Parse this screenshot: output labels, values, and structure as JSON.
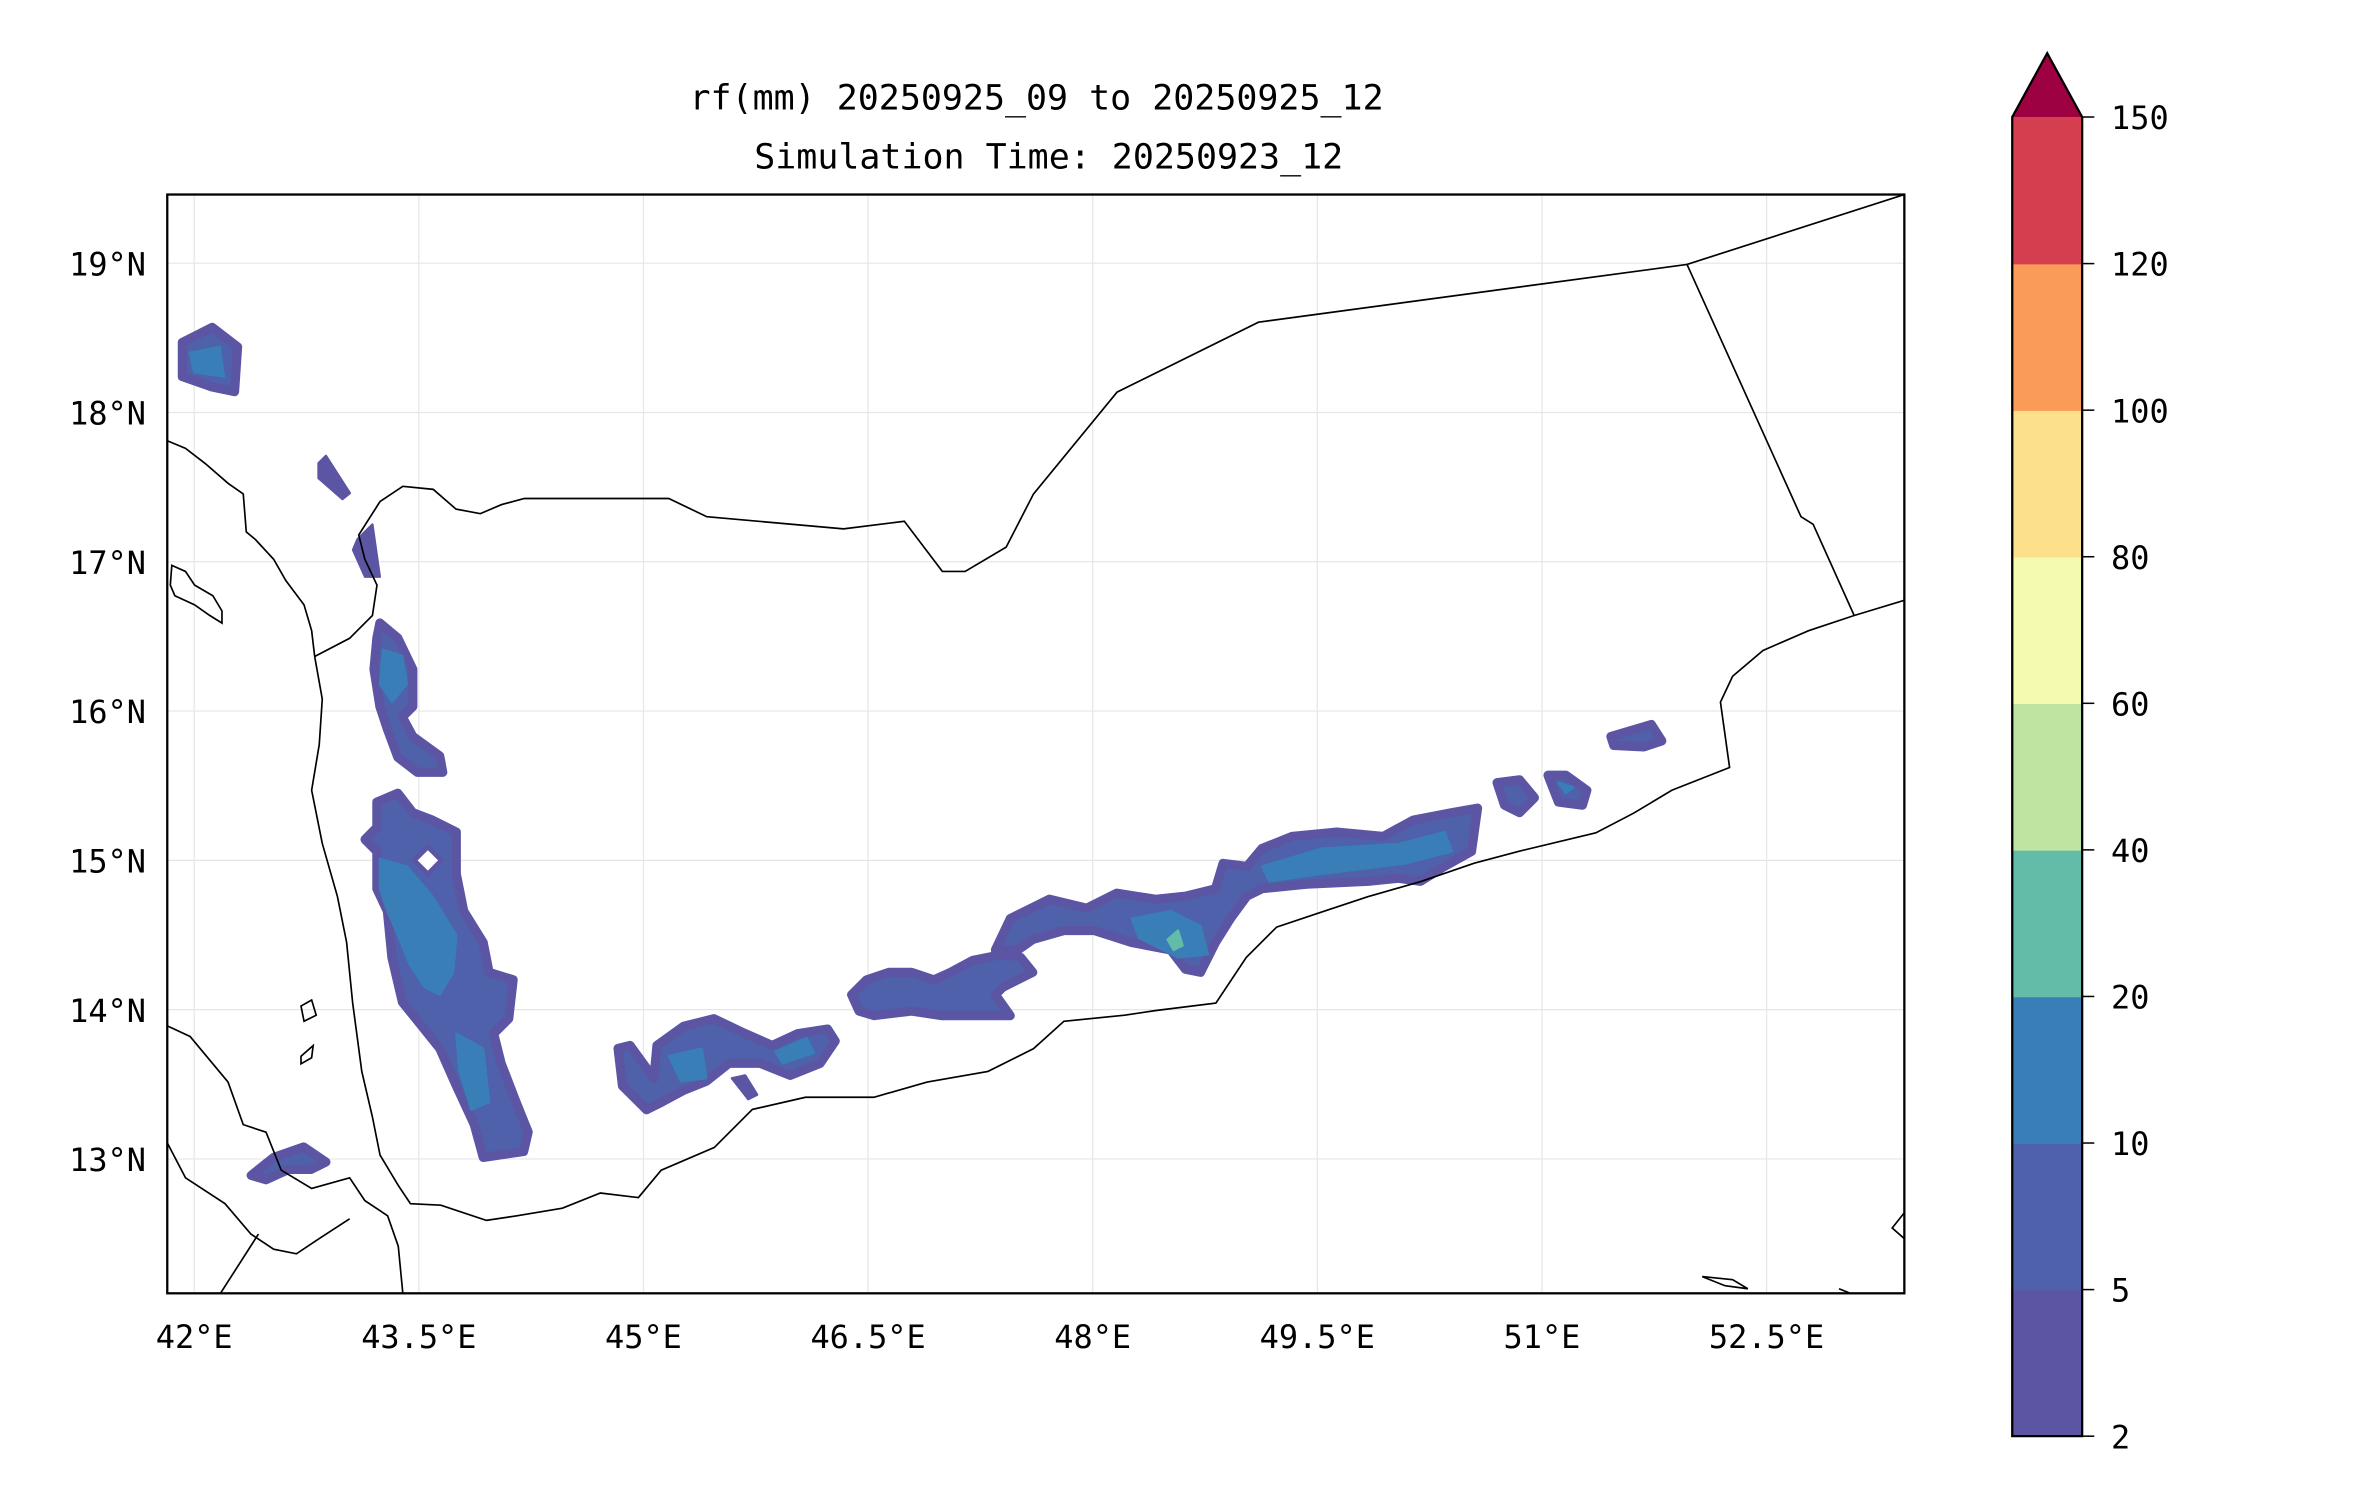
{
  "chart_data": {
    "type": "heatmap",
    "subtype": "filled-contour-map",
    "title": [
      "rf(mm) 20250925_09 to 20250925_12",
      "Simulation Time: 20250923_12"
    ],
    "variable": "rf(mm)",
    "xlim": [
      41.82,
      53.42
    ],
    "ylim": [
      12.1,
      19.46
    ],
    "grid": true,
    "x_ticks": [
      {
        "value": 42,
        "label": "42°E"
      },
      {
        "value": 43.5,
        "label": "43.5°E"
      },
      {
        "value": 45,
        "label": "45°E"
      },
      {
        "value": 46.5,
        "label": "46.5°E"
      },
      {
        "value": 48,
        "label": "48°E"
      },
      {
        "value": 49.5,
        "label": "49.5°E"
      },
      {
        "value": 51,
        "label": "51°E"
      },
      {
        "value": 52.5,
        "label": "52.5°E"
      }
    ],
    "y_ticks": [
      {
        "value": 13,
        "label": "13°N"
      },
      {
        "value": 14,
        "label": "14°N"
      },
      {
        "value": 15,
        "label": "15°N"
      },
      {
        "value": 16,
        "label": "16°N"
      },
      {
        "value": 17,
        "label": "17°N"
      },
      {
        "value": 18,
        "label": "18°N"
      },
      {
        "value": 19,
        "label": "19°N"
      }
    ],
    "colorbar": {
      "placement": "right",
      "extend": "max",
      "levels": [
        2,
        5,
        10,
        20,
        40,
        60,
        80,
        100,
        120,
        150
      ],
      "tick_labels": [
        "2",
        "5",
        "10",
        "20",
        "40",
        "60",
        "80",
        "100",
        "120",
        "150"
      ],
      "colors": [
        "#5c55a3",
        "#4e61aa",
        "#3a7eb8",
        "#62bca8",
        "#bde4a0",
        "#f4fbb0",
        "#fde08b",
        "#fa9c58",
        "#d53e4f"
      ],
      "over_color": "#9e0142"
    },
    "rain_areas": [
      {
        "level": 1,
        "lonlat": [
          [
            41.92,
            18.47
          ],
          [
            42.12,
            18.57
          ],
          [
            42.29,
            18.44
          ],
          [
            42.27,
            18.14
          ],
          [
            42.12,
            18.17
          ],
          [
            41.92,
            18.24
          ]
        ]
      },
      {
        "level": 2,
        "lonlat": [
          [
            41.97,
            18.4
          ],
          [
            42.17,
            18.44
          ],
          [
            42.2,
            18.24
          ],
          [
            42.0,
            18.27
          ]
        ]
      },
      {
        "level": 0,
        "lonlat": [
          [
            42.83,
            17.66
          ],
          [
            42.88,
            17.71
          ],
          [
            43.04,
            17.46
          ],
          [
            42.99,
            17.42
          ],
          [
            42.83,
            17.56
          ]
        ]
      },
      {
        "level": 0,
        "lonlat": [
          [
            43.09,
            17.15
          ],
          [
            43.19,
            17.25
          ],
          [
            43.24,
            16.9
          ],
          [
            43.14,
            16.9
          ],
          [
            43.06,
            17.08
          ]
        ]
      },
      {
        "level": 1,
        "lonlat": [
          [
            43.24,
            16.59
          ],
          [
            43.36,
            16.49
          ],
          [
            43.46,
            16.28
          ],
          [
            43.46,
            16.03
          ],
          [
            43.39,
            15.96
          ],
          [
            43.46,
            15.83
          ],
          [
            43.64,
            15.7
          ],
          [
            43.66,
            15.59
          ],
          [
            43.49,
            15.59
          ],
          [
            43.36,
            15.69
          ],
          [
            43.29,
            15.88
          ],
          [
            43.24,
            16.03
          ],
          [
            43.2,
            16.28
          ],
          [
            43.22,
            16.49
          ]
        ]
      },
      {
        "level": 2,
        "lonlat": [
          [
            43.26,
            16.41
          ],
          [
            43.39,
            16.37
          ],
          [
            43.42,
            16.18
          ],
          [
            43.32,
            16.06
          ],
          [
            43.24,
            16.18
          ]
        ]
      },
      {
        "level": 1,
        "lonlat": [
          [
            43.22,
            15.39
          ],
          [
            43.36,
            15.45
          ],
          [
            43.46,
            15.32
          ],
          [
            43.59,
            15.27
          ],
          [
            43.75,
            15.19
          ],
          [
            43.75,
            14.91
          ],
          [
            43.8,
            14.66
          ],
          [
            43.93,
            14.45
          ],
          [
            43.97,
            14.25
          ],
          [
            44.13,
            14.2
          ],
          [
            44.1,
            13.94
          ],
          [
            44.0,
            13.84
          ],
          [
            44.05,
            13.64
          ],
          [
            44.15,
            13.38
          ],
          [
            44.23,
            13.18
          ],
          [
            44.2,
            13.05
          ],
          [
            43.93,
            13.01
          ],
          [
            43.87,
            13.23
          ],
          [
            43.75,
            13.49
          ],
          [
            43.64,
            13.74
          ],
          [
            43.52,
            13.89
          ],
          [
            43.39,
            14.05
          ],
          [
            43.32,
            14.35
          ],
          [
            43.29,
            14.66
          ],
          [
            43.22,
            14.81
          ],
          [
            43.22,
            15.06
          ],
          [
            43.14,
            15.14
          ],
          [
            43.22,
            15.22
          ]
        ]
      },
      {
        "level": 2,
        "lonlat": [
          [
            43.24,
            15.01
          ],
          [
            43.42,
            14.96
          ],
          [
            43.59,
            14.76
          ],
          [
            43.75,
            14.5
          ],
          [
            43.73,
            14.25
          ],
          [
            43.64,
            14.1
          ],
          [
            43.54,
            14.15
          ],
          [
            43.44,
            14.3
          ],
          [
            43.36,
            14.5
          ],
          [
            43.29,
            14.66
          ],
          [
            43.24,
            14.81
          ]
        ]
      },
      {
        "level": 2,
        "lonlat": [
          [
            43.75,
            13.84
          ],
          [
            43.93,
            13.74
          ],
          [
            43.97,
            13.38
          ],
          [
            43.85,
            13.33
          ],
          [
            43.77,
            13.59
          ]
        ]
      },
      {
        "level": -1,
        "lonlat": [
          [
            43.47,
            15.0
          ],
          [
            43.56,
            15.09
          ],
          [
            43.65,
            15.0
          ],
          [
            43.56,
            14.91
          ]
        ]
      },
      {
        "level": 1,
        "lonlat": [
          [
            44.83,
            13.74
          ],
          [
            44.91,
            13.76
          ],
          [
            45.07,
            13.54
          ],
          [
            45.09,
            13.76
          ],
          [
            45.27,
            13.89
          ],
          [
            45.47,
            13.94
          ],
          [
            45.68,
            13.84
          ],
          [
            45.86,
            13.76
          ],
          [
            46.03,
            13.84
          ],
          [
            46.23,
            13.87
          ],
          [
            46.28,
            13.79
          ],
          [
            46.18,
            13.64
          ],
          [
            45.98,
            13.56
          ],
          [
            45.78,
            13.64
          ],
          [
            45.57,
            13.64
          ],
          [
            45.42,
            13.52
          ],
          [
            45.27,
            13.46
          ],
          [
            45.12,
            13.38
          ],
          [
            45.02,
            13.33
          ],
          [
            44.86,
            13.49
          ]
        ]
      },
      {
        "level": 2,
        "lonlat": [
          [
            45.17,
            13.69
          ],
          [
            45.39,
            13.74
          ],
          [
            45.42,
            13.54
          ],
          [
            45.25,
            13.52
          ]
        ]
      },
      {
        "level": 2,
        "lonlat": [
          [
            45.88,
            13.72
          ],
          [
            46.09,
            13.81
          ],
          [
            46.14,
            13.71
          ],
          [
            45.93,
            13.64
          ]
        ]
      },
      {
        "level": 0,
        "lonlat": [
          [
            45.59,
            13.54
          ],
          [
            45.68,
            13.56
          ],
          [
            45.76,
            13.43
          ],
          [
            45.7,
            13.4
          ]
        ]
      },
      {
        "level": 1,
        "lonlat": [
          [
            46.39,
            14.1
          ],
          [
            46.49,
            14.2
          ],
          [
            46.64,
            14.25
          ],
          [
            46.79,
            14.25
          ],
          [
            46.94,
            14.2
          ],
          [
            47.05,
            14.25
          ],
          [
            47.2,
            14.33
          ],
          [
            47.4,
            14.37
          ],
          [
            47.52,
            14.35
          ],
          [
            47.6,
            14.25
          ],
          [
            47.4,
            14.15
          ],
          [
            47.35,
            14.1
          ],
          [
            47.45,
            13.96
          ],
          [
            46.99,
            13.96
          ],
          [
            46.79,
            13.99
          ],
          [
            46.54,
            13.96
          ],
          [
            46.44,
            13.99
          ]
        ]
      },
      {
        "level": 1,
        "lonlat": [
          [
            47.35,
            14.4
          ],
          [
            47.45,
            14.61
          ],
          [
            47.71,
            14.74
          ],
          [
            47.96,
            14.68
          ],
          [
            48.16,
            14.78
          ],
          [
            48.42,
            14.74
          ],
          [
            48.62,
            14.76
          ],
          [
            48.82,
            14.81
          ],
          [
            48.87,
            14.98
          ],
          [
            49.03,
            14.96
          ],
          [
            49.13,
            15.08
          ],
          [
            49.33,
            15.16
          ],
          [
            49.63,
            15.19
          ],
          [
            49.94,
            15.16
          ],
          [
            50.14,
            15.27
          ],
          [
            50.4,
            15.32
          ],
          [
            50.57,
            15.35
          ],
          [
            50.53,
            15.06
          ],
          [
            50.35,
            14.96
          ],
          [
            50.19,
            14.86
          ],
          [
            50.04,
            14.88
          ],
          [
            49.84,
            14.86
          ],
          [
            49.43,
            14.84
          ],
          [
            49.13,
            14.81
          ],
          [
            49.03,
            14.76
          ],
          [
            48.92,
            14.61
          ],
          [
            48.82,
            14.45
          ],
          [
            48.72,
            14.25
          ],
          [
            48.62,
            14.27
          ],
          [
            48.52,
            14.4
          ],
          [
            48.26,
            14.45
          ],
          [
            48.01,
            14.53
          ],
          [
            47.81,
            14.53
          ],
          [
            47.6,
            14.47
          ],
          [
            47.5,
            14.4
          ]
        ]
      },
      {
        "level": 2,
        "lonlat": [
          [
            48.26,
            14.61
          ],
          [
            48.52,
            14.66
          ],
          [
            48.72,
            14.56
          ],
          [
            48.77,
            14.37
          ],
          [
            48.57,
            14.35
          ],
          [
            48.31,
            14.48
          ]
        ]
      },
      {
        "level": 2,
        "lonlat": [
          [
            49.13,
            14.96
          ],
          [
            49.53,
            15.08
          ],
          [
            50.04,
            15.11
          ],
          [
            50.35,
            15.19
          ],
          [
            50.4,
            15.06
          ],
          [
            50.09,
            14.98
          ],
          [
            49.53,
            14.91
          ],
          [
            49.18,
            14.86
          ]
        ]
      },
      {
        "level": 3,
        "lonlat": [
          [
            48.5,
            14.47
          ],
          [
            48.57,
            14.53
          ],
          [
            48.6,
            14.43
          ],
          [
            48.54,
            14.4
          ]
        ]
      },
      {
        "level": 1,
        "lonlat": [
          [
            50.7,
            15.52
          ],
          [
            50.85,
            15.54
          ],
          [
            50.95,
            15.42
          ],
          [
            50.85,
            15.32
          ],
          [
            50.75,
            15.37
          ]
        ]
      },
      {
        "level": 1,
        "lonlat": [
          [
            51.04,
            15.57
          ],
          [
            51.16,
            15.57
          ],
          [
            51.3,
            15.47
          ],
          [
            51.27,
            15.37
          ],
          [
            51.11,
            15.39
          ]
        ]
      },
      {
        "level": 2,
        "lonlat": [
          [
            51.11,
            15.52
          ],
          [
            51.21,
            15.49
          ],
          [
            51.16,
            15.45
          ]
        ]
      },
      {
        "level": 1,
        "lonlat": [
          [
            51.46,
            15.83
          ],
          [
            51.73,
            15.91
          ],
          [
            51.8,
            15.8
          ],
          [
            51.68,
            15.76
          ],
          [
            51.48,
            15.77
          ]
        ]
      },
      {
        "level": 1,
        "lonlat": [
          [
            42.38,
            12.89
          ],
          [
            42.53,
            13.01
          ],
          [
            42.73,
            13.08
          ],
          [
            42.88,
            12.98
          ],
          [
            42.78,
            12.93
          ],
          [
            42.63,
            12.93
          ],
          [
            42.48,
            12.86
          ]
        ]
      }
    ]
  }
}
